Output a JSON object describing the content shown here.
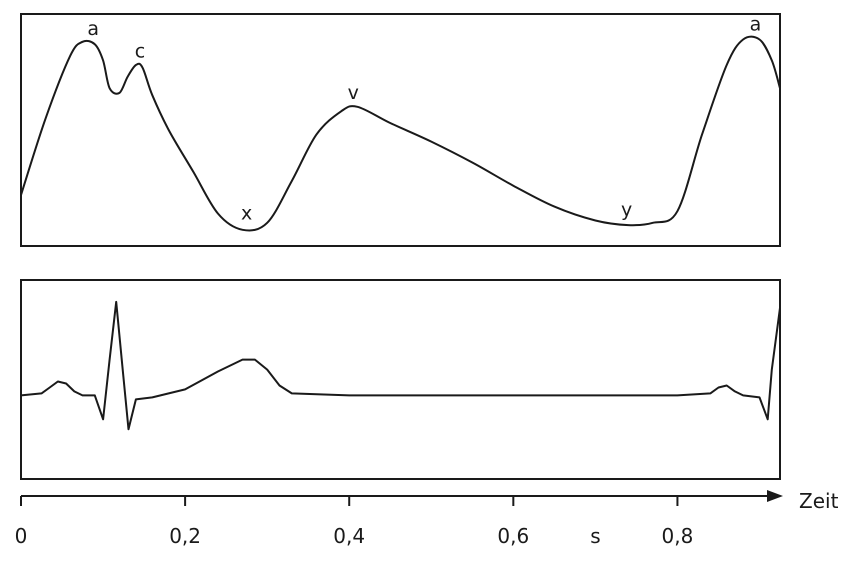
{
  "chart_data": [
    {
      "type": "line",
      "panel": "top",
      "wave_labels": [
        {
          "text": "a",
          "t": 0.088
        },
        {
          "text": "c",
          "t": 0.145
        },
        {
          "text": "x",
          "t": 0.275
        },
        {
          "text": "v",
          "t": 0.405
        },
        {
          "text": "y",
          "t": 0.738
        },
        {
          "text": "a",
          "t": 0.895
        }
      ],
      "series": [
        {
          "x": [
            0.0,
            0.03,
            0.06,
            0.075,
            0.09,
            0.1,
            0.108,
            0.12,
            0.13,
            0.14,
            0.148,
            0.16,
            0.18,
            0.21,
            0.24,
            0.27,
            0.3,
            0.33,
            0.36,
            0.39,
            0.41,
            0.45,
            0.5,
            0.55,
            0.6,
            0.65,
            0.7,
            0.74,
            0.77,
            0.8,
            0.83,
            0.86,
            0.88,
            0.9,
            0.915,
            0.925
          ],
          "y": [
            0.22,
            0.55,
            0.82,
            0.88,
            0.87,
            0.8,
            0.68,
            0.66,
            0.73,
            0.78,
            0.77,
            0.65,
            0.5,
            0.32,
            0.14,
            0.07,
            0.1,
            0.28,
            0.48,
            0.58,
            0.6,
            0.53,
            0.45,
            0.36,
            0.26,
            0.17,
            0.11,
            0.09,
            0.1,
            0.15,
            0.48,
            0.78,
            0.89,
            0.89,
            0.8,
            0.68
          ]
        }
      ]
    },
    {
      "type": "line",
      "panel": "bottom",
      "series": [
        {
          "x": [
            0.0,
            0.025,
            0.035,
            0.045,
            0.055,
            0.065,
            0.075,
            0.09,
            0.1,
            0.108,
            0.116,
            0.124,
            0.131,
            0.14,
            0.16,
            0.2,
            0.24,
            0.27,
            0.285,
            0.3,
            0.315,
            0.33,
            0.4,
            0.5,
            0.6,
            0.7,
            0.8,
            0.84,
            0.85,
            0.86,
            0.87,
            0.88,
            0.9,
            0.91,
            0.915,
            0.925
          ],
          "y": [
            0.42,
            0.43,
            0.46,
            0.49,
            0.48,
            0.44,
            0.42,
            0.42,
            0.3,
            0.6,
            0.89,
            0.55,
            0.25,
            0.4,
            0.41,
            0.45,
            0.54,
            0.6,
            0.6,
            0.55,
            0.47,
            0.43,
            0.42,
            0.42,
            0.42,
            0.42,
            0.42,
            0.43,
            0.46,
            0.47,
            0.44,
            0.42,
            0.41,
            0.3,
            0.55,
            0.86
          ]
        }
      ]
    }
  ],
  "axis": {
    "label": "Zeit",
    "unit": "s",
    "ticks": [
      "0",
      "0,2",
      "0,4",
      "0,6",
      "0,8"
    ],
    "tick_values": [
      0,
      0.2,
      0.4,
      0.6,
      0.8
    ],
    "xlim": [
      0,
      0.925
    ],
    "unit_pos": 0.7
  }
}
